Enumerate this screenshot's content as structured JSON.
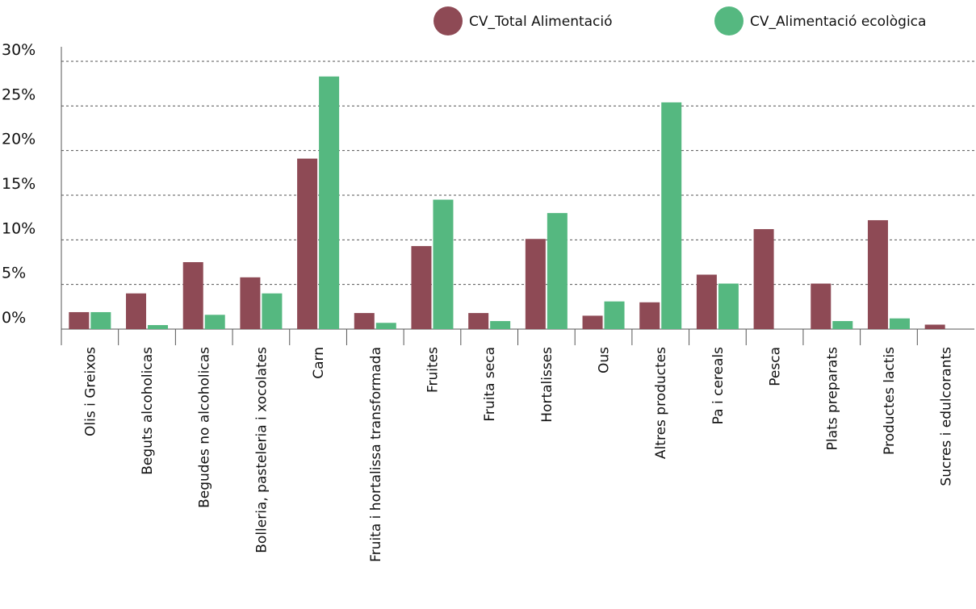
{
  "chart_data": {
    "type": "bar",
    "categories": [
      "Olis i Greixos",
      "Beguts alcoholicas",
      "Begudes no alcoholicas",
      "Bolleria, pasteleria i xocolates",
      "Carn",
      "Fruita i hortalissa transformada",
      "Fruites",
      "Fruita seca",
      "Hortalisses",
      "Ous",
      "Altres productes",
      "Pa i cereals",
      "Pesca",
      "Plats preparats",
      "Productes lactis",
      "Sucres i edulcorants"
    ],
    "series": [
      {
        "name": "CV_Total Alimentació",
        "color": "#8e4a55",
        "values": [
          1.9,
          4.0,
          7.5,
          5.8,
          19.1,
          1.8,
          9.3,
          1.8,
          10.1,
          1.5,
          3.0,
          6.1,
          11.2,
          5.1,
          12.2,
          0.5
        ]
      },
      {
        "name": "CV_Alimentació ecològica",
        "color": "#55b880",
        "values": [
          1.9,
          0.45,
          1.6,
          4.0,
          28.3,
          0.7,
          14.5,
          0.9,
          13.0,
          3.1,
          25.4,
          5.1,
          0,
          0.9,
          1.2,
          0
        ]
      }
    ],
    "ylim": [
      0,
      30
    ],
    "yticks": [
      {
        "value": 0,
        "label": "0%"
      },
      {
        "value": 5,
        "label": "5%"
      },
      {
        "value": 10,
        "label": "10%"
      },
      {
        "value": 15,
        "label": "15%"
      },
      {
        "value": 20,
        "label": "20%"
      },
      {
        "value": 25,
        "label": "25%"
      },
      {
        "value": 30,
        "label": "30%"
      }
    ],
    "grid": true,
    "legend": "top-right"
  }
}
